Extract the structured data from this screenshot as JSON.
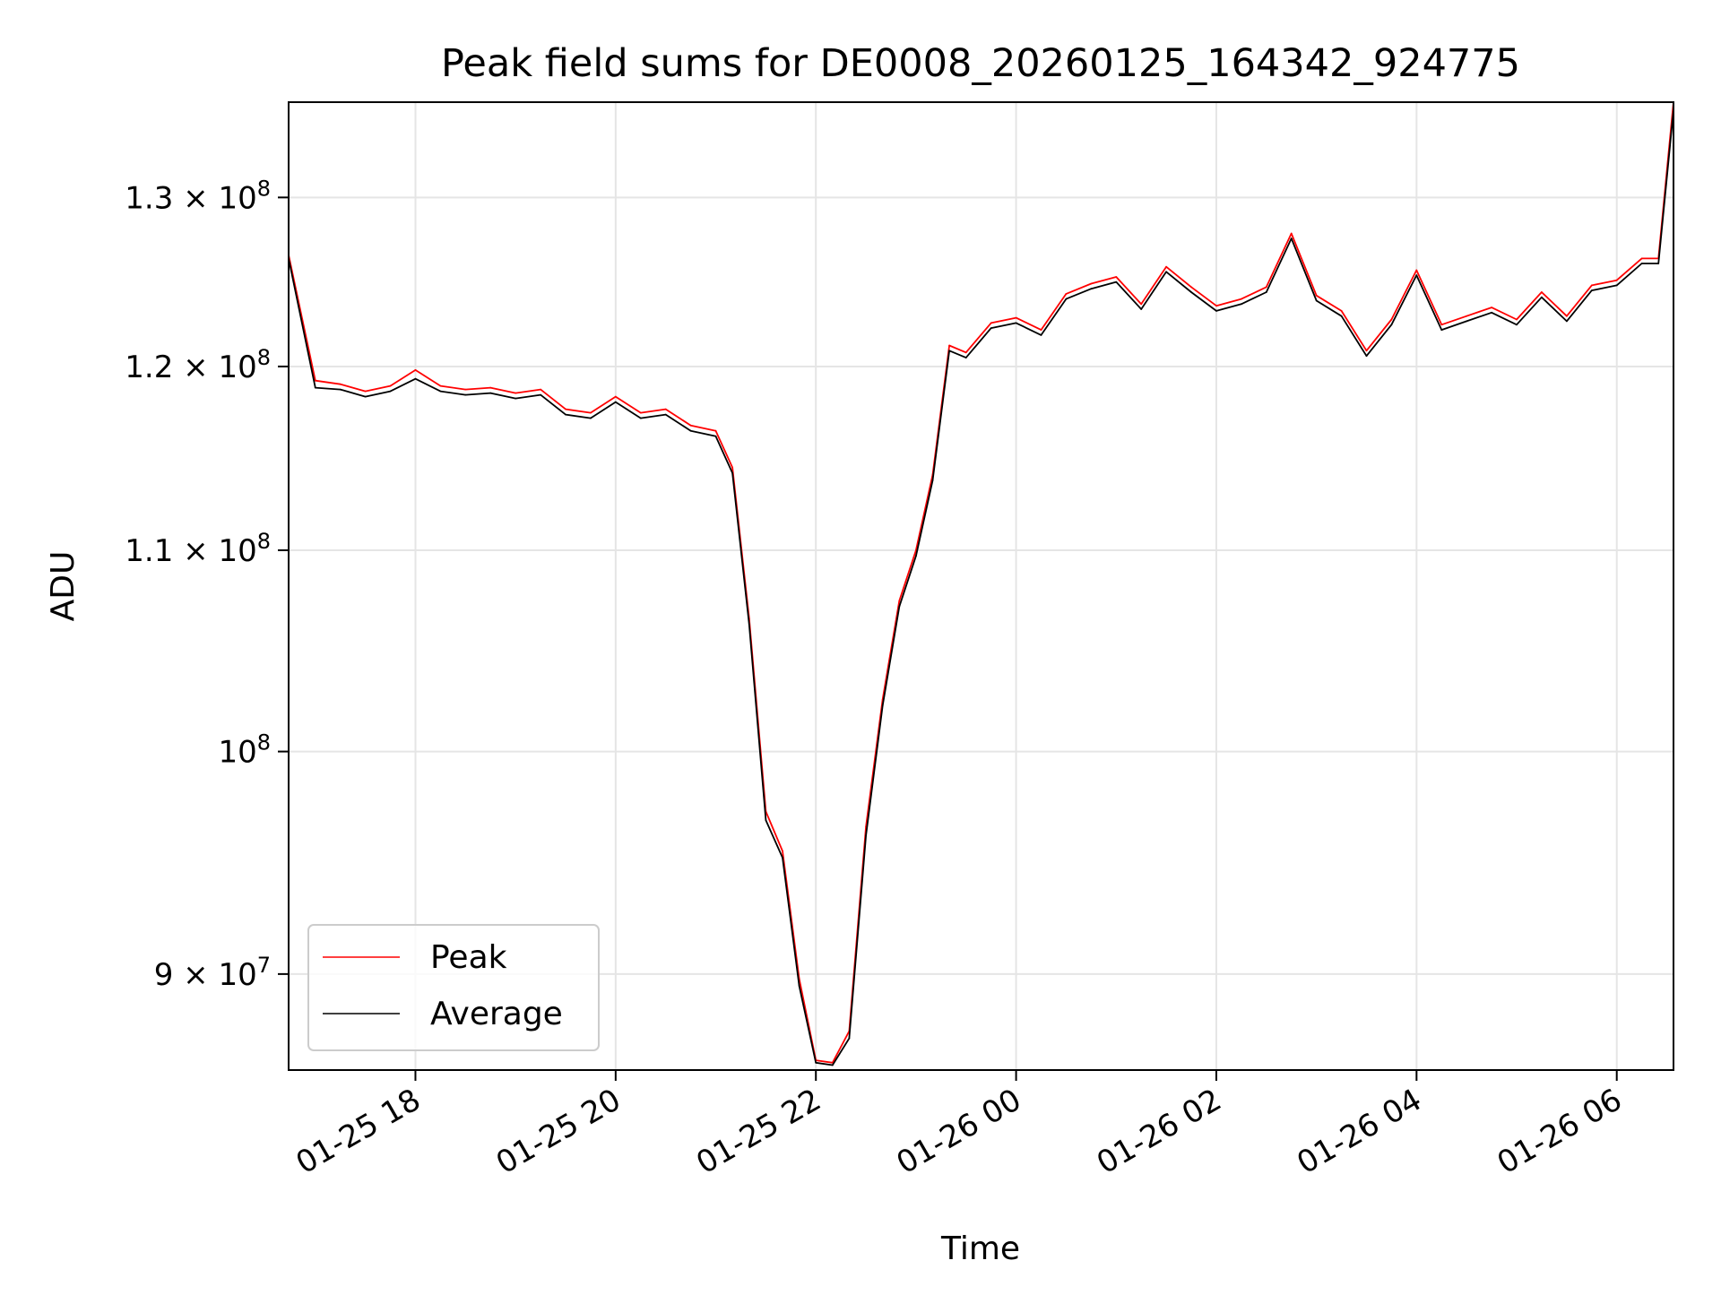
{
  "chart_data": {
    "type": "line",
    "title": "Peak field sums for DE0008_20260125_164342_924775",
    "xlabel": "Time",
    "ylabel": "ADU",
    "yscale": "log",
    "xlim": [
      "2026-01-25 16:44",
      "2026-01-26 06:34"
    ],
    "ylim": [
      86000000,
      136000000
    ],
    "grid": true,
    "legend_position": "lower-left",
    "x_ticks": [
      {
        "value": "2026-01-25 18:00",
        "label": "01-25 18"
      },
      {
        "value": "2026-01-25 20:00",
        "label": "01-25 20"
      },
      {
        "value": "2026-01-25 22:00",
        "label": "01-25 22"
      },
      {
        "value": "2026-01-26 00:00",
        "label": "01-26 00"
      },
      {
        "value": "2026-01-26 02:00",
        "label": "01-26 02"
      },
      {
        "value": "2026-01-26 04:00",
        "label": "01-26 04"
      },
      {
        "value": "2026-01-26 06:00",
        "label": "01-26 06"
      }
    ],
    "y_ticks": [
      {
        "value": 90000000,
        "mantissa": "9",
        "exponent": "7"
      },
      {
        "value": 100000000,
        "mantissa": "",
        "exponent": "8"
      },
      {
        "value": 110000000,
        "mantissa": "1.1",
        "exponent": "8"
      },
      {
        "value": 120000000,
        "mantissa": "1.2",
        "exponent": "8"
      },
      {
        "value": 130000000,
        "mantissa": "1.3",
        "exponent": "8"
      }
    ],
    "x": [
      "2026-01-25 16:44",
      "2026-01-25 17:00",
      "2026-01-25 17:15",
      "2026-01-25 17:30",
      "2026-01-25 17:45",
      "2026-01-25 18:00",
      "2026-01-25 18:15",
      "2026-01-25 18:30",
      "2026-01-25 18:45",
      "2026-01-25 19:00",
      "2026-01-25 19:15",
      "2026-01-25 19:30",
      "2026-01-25 19:45",
      "2026-01-25 20:00",
      "2026-01-25 20:15",
      "2026-01-25 20:30",
      "2026-01-25 20:45",
      "2026-01-25 21:00",
      "2026-01-25 21:10",
      "2026-01-25 21:20",
      "2026-01-25 21:30",
      "2026-01-25 21:40",
      "2026-01-25 21:50",
      "2026-01-25 22:00",
      "2026-01-25 22:10",
      "2026-01-25 22:20",
      "2026-01-25 22:30",
      "2026-01-25 22:40",
      "2026-01-25 22:50",
      "2026-01-25 23:00",
      "2026-01-25 23:10",
      "2026-01-25 23:20",
      "2026-01-25 23:30",
      "2026-01-25 23:45",
      "2026-01-26 00:00",
      "2026-01-26 00:15",
      "2026-01-26 00:30",
      "2026-01-26 00:45",
      "2026-01-26 01:00",
      "2026-01-26 01:15",
      "2026-01-26 01:30",
      "2026-01-26 01:45",
      "2026-01-26 02:00",
      "2026-01-26 02:15",
      "2026-01-26 02:30",
      "2026-01-26 02:45",
      "2026-01-26 03:00",
      "2026-01-26 03:15",
      "2026-01-26 03:30",
      "2026-01-26 03:45",
      "2026-01-26 04:00",
      "2026-01-26 04:15",
      "2026-01-26 04:30",
      "2026-01-26 04:45",
      "2026-01-26 05:00",
      "2026-01-26 05:15",
      "2026-01-26 05:30",
      "2026-01-26 05:45",
      "2026-01-26 06:00",
      "2026-01-26 06:15",
      "2026-01-26 06:25",
      "2026-01-26 06:34"
    ],
    "series": [
      {
        "name": "Peak",
        "color": "#ff0000",
        "values": [
          126500000,
          119200000,
          119000000,
          118600000,
          118900000,
          119800000,
          118900000,
          118700000,
          118800000,
          118500000,
          118700000,
          117600000,
          117400000,
          118300000,
          117400000,
          117600000,
          116700000,
          116400000,
          114400000,
          106500000,
          97200000,
          95400000,
          89800000,
          86400000,
          86300000,
          87600000,
          96500000,
          102500000,
          107400000,
          110000000,
          114000000,
          121200000,
          120800000,
          122500000,
          122800000,
          122100000,
          124200000,
          124800000,
          125200000,
          123600000,
          125800000,
          124600000,
          123500000,
          123900000,
          124600000,
          127800000,
          124100000,
          123200000,
          120900000,
          122700000,
          125600000,
          122400000,
          122900000,
          123400000,
          122700000,
          124300000,
          122900000,
          124700000,
          125000000,
          126300000,
          126300000,
          136000000
        ]
      },
      {
        "name": "Average",
        "color": "#000000",
        "values": [
          126300000,
          118800000,
          118700000,
          118300000,
          118600000,
          119300000,
          118600000,
          118400000,
          118500000,
          118200000,
          118400000,
          117300000,
          117100000,
          118000000,
          117100000,
          117300000,
          116400000,
          116100000,
          114100000,
          106200000,
          96800000,
          95100000,
          89500000,
          86300000,
          86200000,
          87300000,
          96100000,
          102200000,
          107100000,
          109700000,
          113700000,
          120900000,
          120500000,
          122200000,
          122500000,
          121800000,
          123900000,
          124500000,
          124900000,
          123300000,
          125500000,
          124300000,
          123200000,
          123600000,
          124300000,
          127500000,
          123800000,
          122900000,
          120600000,
          122400000,
          125300000,
          122100000,
          122600000,
          123100000,
          122400000,
          124000000,
          122600000,
          124400000,
          124700000,
          126000000,
          126000000,
          135500000
        ]
      }
    ]
  }
}
